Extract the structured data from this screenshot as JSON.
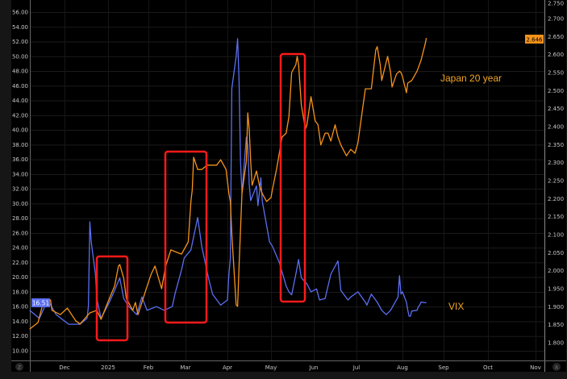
{
  "chart_data": {
    "type": "line",
    "title": "",
    "grid": true,
    "x_ticks": [
      "Dec",
      "2025",
      "Feb",
      "Mar",
      "Apr",
      "May",
      "Jun",
      "Jul",
      "Aug",
      "Sep",
      "Oct",
      "Nov"
    ],
    "left_axis": {
      "ylim": [
        9,
        57
      ],
      "ticks": [
        "10.00",
        "12.00",
        "14.00",
        "16.00",
        "18.00",
        "20.00",
        "22.00",
        "24.00",
        "26.00",
        "28.00",
        "30.00",
        "32.00",
        "34.00",
        "36.00",
        "38.00",
        "40.00",
        "42.00",
        "44.00",
        "46.00",
        "48.00",
        "50.00",
        "52.00",
        "54.00",
        "56.00"
      ]
    },
    "right_axis": {
      "ylim": [
        1.77,
        2.75
      ],
      "ticks": [
        "1.800",
        "1.850",
        "1.900",
        "1.950",
        "2.000",
        "2.050",
        "2.100",
        "2.150",
        "2.200",
        "2.250",
        "2.300",
        "2.350",
        "2.400",
        "2.450",
        "2.500",
        "2.550",
        "2.600",
        "2.650",
        "2.700",
        "2.750"
      ]
    },
    "corner_buttons": {
      "left": "Z",
      "right": "A"
    },
    "series": [
      {
        "name": "VIX",
        "axis": "left",
        "color": "#5b6ff2",
        "last_label": "16.51",
        "points": [
          [
            "2024-11-06",
            15.5
          ],
          [
            "2024-11-13",
            14.4
          ],
          [
            "2024-11-19",
            16.9
          ],
          [
            "2024-11-25",
            14.9
          ],
          [
            "2024-12-04",
            13.6
          ],
          [
            "2024-12-12",
            13.6
          ],
          [
            "2024-12-17",
            14.4
          ],
          [
            "2024-12-18",
            16.0
          ],
          [
            "2024-12-19",
            27.5
          ],
          [
            "2024-12-20",
            24.8
          ],
          [
            "2024-12-23",
            20.4
          ],
          [
            "2024-12-24",
            17.1
          ],
          [
            "2024-12-27",
            14.4
          ],
          [
            "2025-01-02",
            16.6
          ],
          [
            "2025-01-06",
            18.2
          ],
          [
            "2025-01-10",
            19.9
          ],
          [
            "2025-01-13",
            17.1
          ],
          [
            "2025-01-17",
            16.0
          ],
          [
            "2025-01-23",
            14.9
          ],
          [
            "2025-01-27",
            17.3
          ],
          [
            "2025-01-31",
            15.5
          ],
          [
            "2025-02-07",
            16.0
          ],
          [
            "2025-02-13",
            15.5
          ],
          [
            "2025-02-19",
            16.0
          ],
          [
            "2025-02-21",
            17.7
          ],
          [
            "2025-02-26",
            21.0
          ],
          [
            "2025-02-28",
            22.6
          ],
          [
            "2025-03-05",
            23.7
          ],
          [
            "2025-03-10",
            28.1
          ],
          [
            "2025-03-13",
            24.2
          ],
          [
            "2025-03-18",
            19.9
          ],
          [
            "2025-03-21",
            17.7
          ],
          [
            "2025-03-27",
            16.2
          ],
          [
            "2025-04-01",
            16.9
          ],
          [
            "2025-04-02",
            20.4
          ],
          [
            "2025-04-03",
            22.6
          ],
          [
            "2025-04-04",
            45.6
          ],
          [
            "2025-04-07",
            50.0
          ],
          [
            "2025-04-08",
            52.4
          ],
          [
            "2025-04-09",
            46.7
          ],
          [
            "2025-04-10",
            35.7
          ],
          [
            "2025-04-11",
            31.4
          ],
          [
            "2025-04-14",
            39.0
          ],
          [
            "2025-04-15",
            37.9
          ],
          [
            "2025-04-16",
            32.6
          ],
          [
            "2025-04-17",
            30.4
          ],
          [
            "2025-04-21",
            32.4
          ],
          [
            "2025-04-22",
            29.7
          ],
          [
            "2025-04-23",
            31.4
          ],
          [
            "2025-04-24",
            33.5
          ],
          [
            "2025-04-25",
            30.3
          ],
          [
            "2025-04-28",
            27.0
          ],
          [
            "2025-04-30",
            24.8
          ],
          [
            "2025-05-02",
            24.2
          ],
          [
            "2025-05-07",
            22.0
          ],
          [
            "2025-05-12",
            18.8
          ],
          [
            "2025-05-14",
            18.0
          ],
          [
            "2025-05-16",
            17.6
          ],
          [
            "2025-05-19",
            20.4
          ],
          [
            "2025-05-21",
            22.4
          ],
          [
            "2025-05-23",
            19.9
          ],
          [
            "2025-05-27",
            19.1
          ],
          [
            "2025-05-30",
            18.0
          ],
          [
            "2025-06-03",
            18.4
          ],
          [
            "2025-06-05",
            16.9
          ],
          [
            "2025-06-09",
            17.1
          ],
          [
            "2025-06-13",
            20.4
          ],
          [
            "2025-06-16",
            21.5
          ],
          [
            "2025-06-18",
            22.2
          ],
          [
            "2025-06-20",
            18.2
          ],
          [
            "2025-06-25",
            16.9
          ],
          [
            "2025-06-27",
            17.3
          ],
          [
            "2025-07-02",
            18.0
          ],
          [
            "2025-07-07",
            16.6
          ],
          [
            "2025-07-08",
            16.2
          ],
          [
            "2025-07-11",
            17.7
          ],
          [
            "2025-07-15",
            16.6
          ],
          [
            "2025-07-18",
            15.5
          ],
          [
            "2025-07-21",
            14.9
          ],
          [
            "2025-07-24",
            15.5
          ],
          [
            "2025-07-29",
            17.3
          ],
          [
            "2025-07-30",
            20.2
          ],
          [
            "2025-07-31",
            17.7
          ],
          [
            "2025-08-01",
            18.0
          ],
          [
            "2025-08-04",
            16.6
          ],
          [
            "2025-08-05",
            15.5
          ],
          [
            "2025-08-06",
            14.7
          ],
          [
            "2025-08-07",
            14.7
          ],
          [
            "2025-08-08",
            15.4
          ],
          [
            "2025-08-12",
            15.5
          ],
          [
            "2025-08-13",
            16.0
          ],
          [
            "2025-08-14",
            16.2
          ],
          [
            "2025-08-15",
            16.6
          ],
          [
            "2025-08-19",
            16.51
          ]
        ]
      },
      {
        "name": "Japan 20 year",
        "axis": "right",
        "color": "#f7931a",
        "last_label": "2.646",
        "points": [
          [
            "2024-11-06",
            1.838
          ],
          [
            "2024-11-12",
            1.856
          ],
          [
            "2024-11-15",
            1.901
          ],
          [
            "2024-11-21",
            1.919
          ],
          [
            "2024-11-22",
            1.89
          ],
          [
            "2024-11-28",
            1.878
          ],
          [
            "2024-12-03",
            1.896
          ],
          [
            "2024-12-09",
            1.861
          ],
          [
            "2024-12-12",
            1.852
          ],
          [
            "2024-12-19",
            1.883
          ],
          [
            "2024-12-24",
            1.89
          ],
          [
            "2024-12-27",
            1.865
          ],
          [
            "2025-01-02",
            1.923
          ],
          [
            "2025-01-06",
            1.957
          ],
          [
            "2025-01-09",
            2.013
          ],
          [
            "2025-01-10",
            2.017
          ],
          [
            "2025-01-13",
            1.979
          ],
          [
            "2025-01-15",
            1.923
          ],
          [
            "2025-01-20",
            1.89
          ],
          [
            "2025-01-22",
            1.912
          ],
          [
            "2025-01-24",
            1.878
          ],
          [
            "2025-01-30",
            1.946
          ],
          [
            "2025-02-03",
            1.99
          ],
          [
            "2025-02-06",
            2.013
          ],
          [
            "2025-02-11",
            1.95
          ],
          [
            "2025-02-14",
            2.013
          ],
          [
            "2025-02-18",
            2.058
          ],
          [
            "2025-02-21",
            2.053
          ],
          [
            "2025-02-26",
            2.046
          ],
          [
            "2025-03-03",
            2.08
          ],
          [
            "2025-03-05",
            2.192
          ],
          [
            "2025-03-06",
            2.225
          ],
          [
            "2025-03-07",
            2.315
          ],
          [
            "2025-03-10",
            2.281
          ],
          [
            "2025-03-13",
            2.281
          ],
          [
            "2025-03-17",
            2.293
          ],
          [
            "2025-03-20",
            2.293
          ],
          [
            "2025-03-24",
            2.293
          ],
          [
            "2025-03-27",
            2.308
          ],
          [
            "2025-03-31",
            2.281
          ],
          [
            "2025-04-02",
            2.214
          ],
          [
            "2025-04-03",
            2.192
          ],
          [
            "2025-04-04",
            2.102
          ],
          [
            "2025-04-07",
            1.905
          ],
          [
            "2025-04-08",
            1.901
          ],
          [
            "2025-04-09",
            2.013
          ],
          [
            "2025-04-11",
            2.214
          ],
          [
            "2025-04-14",
            2.304
          ],
          [
            "2025-04-15",
            2.438
          ],
          [
            "2025-04-16",
            2.393
          ],
          [
            "2025-04-17",
            2.304
          ],
          [
            "2025-04-18",
            2.237
          ],
          [
            "2025-04-21",
            2.277
          ],
          [
            "2025-04-23",
            2.237
          ],
          [
            "2025-04-25",
            2.214
          ],
          [
            "2025-04-28",
            2.192
          ],
          [
            "2025-05-01",
            2.203
          ],
          [
            "2025-05-02",
            2.225
          ],
          [
            "2025-05-05",
            2.281
          ],
          [
            "2025-05-07",
            2.326
          ],
          [
            "2025-05-09",
            2.371
          ],
          [
            "2025-05-12",
            2.382
          ],
          [
            "2025-05-14",
            2.427
          ],
          [
            "2025-05-16",
            2.55
          ],
          [
            "2025-05-19",
            2.572
          ],
          [
            "2025-05-20",
            2.595
          ],
          [
            "2025-05-21",
            2.572
          ],
          [
            "2025-05-23",
            2.46
          ],
          [
            "2025-05-26",
            2.393
          ],
          [
            "2025-05-27",
            2.405
          ],
          [
            "2025-05-30",
            2.483
          ],
          [
            "2025-06-02",
            2.416
          ],
          [
            "2025-06-04",
            2.405
          ],
          [
            "2025-06-06",
            2.349
          ],
          [
            "2025-06-09",
            2.382
          ],
          [
            "2025-06-11",
            2.382
          ],
          [
            "2025-06-13",
            2.36
          ],
          [
            "2025-06-16",
            2.405
          ],
          [
            "2025-06-18",
            2.371
          ],
          [
            "2025-06-20",
            2.349
          ],
          [
            "2025-06-24",
            2.319
          ],
          [
            "2025-06-27",
            2.337
          ],
          [
            "2025-06-30",
            2.326
          ],
          [
            "2025-07-02",
            2.355
          ],
          [
            "2025-07-04",
            2.416
          ],
          [
            "2025-07-07",
            2.505
          ],
          [
            "2025-07-11",
            2.505
          ],
          [
            "2025-07-14",
            2.613
          ],
          [
            "2025-07-15",
            2.622
          ],
          [
            "2025-07-17",
            2.572
          ],
          [
            "2025-07-18",
            2.528
          ],
          [
            "2025-07-22",
            2.595
          ],
          [
            "2025-07-24",
            2.55
          ],
          [
            "2025-07-25",
            2.51
          ],
          [
            "2025-07-28",
            2.546
          ],
          [
            "2025-07-30",
            2.554
          ],
          [
            "2025-07-31",
            2.55
          ],
          [
            "2025-08-01",
            2.539
          ],
          [
            "2025-08-04",
            2.494
          ],
          [
            "2025-08-05",
            2.521
          ],
          [
            "2025-08-08",
            2.528
          ],
          [
            "2025-08-12",
            2.554
          ],
          [
            "2025-08-15",
            2.584
          ],
          [
            "2025-08-18",
            2.628
          ],
          [
            "2025-08-19",
            2.646
          ]
        ]
      }
    ]
  }
}
